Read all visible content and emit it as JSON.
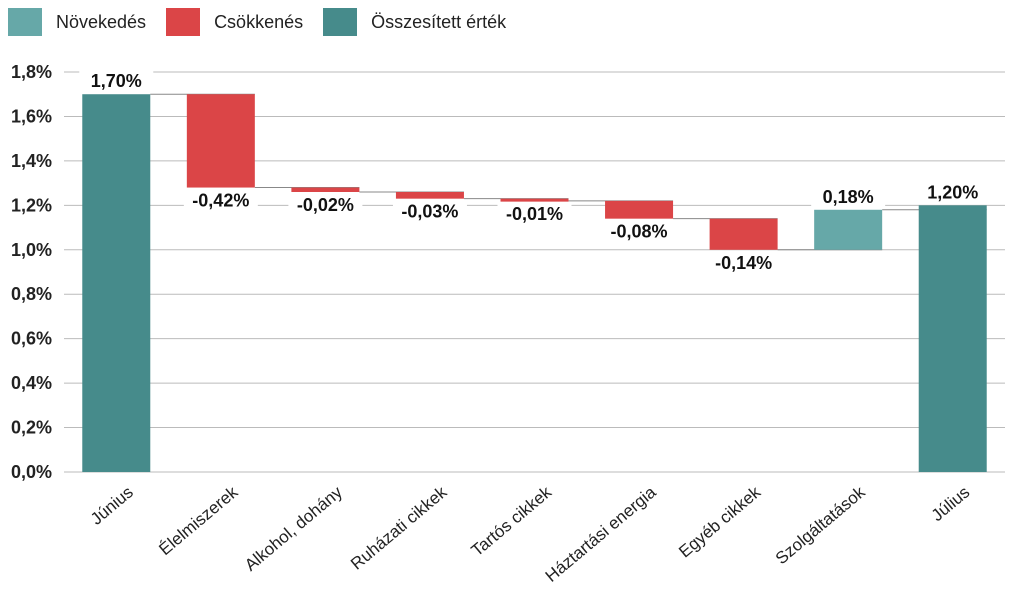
{
  "chart_data": {
    "type": "waterfall",
    "legend": [
      {
        "label": "Növekedés",
        "color": "#66a8a8"
      },
      {
        "label": "Csökkenés",
        "color": "#db4547"
      },
      {
        "label": "Összesített érték",
        "color": "#468b8b"
      }
    ],
    "categories": [
      "Június",
      "Élelmiszerek",
      "Alkohol, dohány",
      "Ruházati cikkek",
      "Tartós cikkek",
      "Háztartási energia",
      "Egyéb cikkek",
      "Szolgáltatások",
      "Július"
    ],
    "values": [
      1.7,
      -0.42,
      -0.02,
      -0.03,
      -0.01,
      -0.08,
      -0.14,
      0.18,
      1.2
    ],
    "kinds": [
      "total",
      "decrease",
      "decrease",
      "decrease",
      "decrease",
      "decrease",
      "decrease",
      "increase",
      "total"
    ],
    "data_labels": [
      "1,70%",
      "-0,42%",
      "-0,02%",
      "-0,03%",
      "-0,01%",
      "-0,08%",
      "-0,14%",
      "0,18%",
      "1,20%"
    ],
    "yticks": [
      "0,0%",
      "0,2%",
      "0,4%",
      "0,6%",
      "0,8%",
      "1,0%",
      "1,2%",
      "1,4%",
      "1,6%",
      "1,8%"
    ],
    "ylim": [
      0,
      1.8
    ],
    "grid": true,
    "legend_position": "top-left",
    "colors": {
      "total": "#468b8b",
      "increase": "#66a8a8",
      "decrease": "#db4547",
      "grid": "#bbbbbb",
      "connector": "#888888"
    }
  }
}
